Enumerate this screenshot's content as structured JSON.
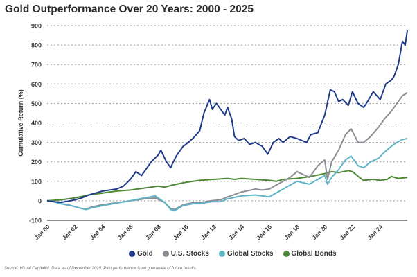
{
  "chart_data": {
    "type": "line",
    "title": "Gold Outperformance Over 20 Years: 2000 - 2025",
    "xlabel": "",
    "ylabel": "Cumulative Return (%)",
    "ylim": [
      -100,
      900
    ],
    "yticks": [
      "900",
      "800",
      "700",
      "600",
      "500",
      "400",
      "300",
      "200",
      "100",
      "0",
      "-100"
    ],
    "yticks_values": [
      900,
      800,
      700,
      600,
      500,
      400,
      300,
      200,
      100,
      0,
      -100
    ],
    "xticks": [
      "Jan 00",
      "Jan 02",
      "Jan 04",
      "Jan 06",
      "Jan 08",
      "Jan 10",
      "Jan 12",
      "Jan 14",
      "Jan 16",
      "Jan 18",
      "Jan 20",
      "Jan 22",
      "Jan 24"
    ],
    "xticks_values": [
      2000,
      2002,
      2004,
      2006,
      2008,
      2010,
      2012,
      2014,
      2016,
      2018,
      2020,
      2022,
      2024
    ],
    "xlim": [
      2000,
      2025.95
    ],
    "grid": true,
    "legend_position": "bottom",
    "series": [
      {
        "name": "Gold",
        "color": "#1f3a8a",
        "x": [
          2000,
          2000.5,
          2001,
          2001.5,
          2002,
          2002.5,
          2003,
          2003.5,
          2004,
          2004.5,
          2005,
          2005.5,
          2006,
          2006.4,
          2006.8,
          2007,
          2007.5,
          2008,
          2008.2,
          2008.6,
          2008.9,
          2009.3,
          2009.8,
          2010,
          2010.5,
          2011,
          2011.3,
          2011.7,
          2011.9,
          2012.2,
          2012.5,
          2012.8,
          2013,
          2013.3,
          2013.5,
          2013.8,
          2014.2,
          2014.6,
          2015,
          2015.5,
          2015.9,
          2016.3,
          2016.7,
          2017,
          2017.5,
          2018,
          2018.7,
          2019,
          2019.5,
          2020,
          2020.4,
          2020.7,
          2021,
          2021.3,
          2021.7,
          2022,
          2022.4,
          2022.8,
          2023,
          2023.5,
          2024,
          2024.4,
          2024.8,
          2025,
          2025.3,
          2025.6,
          2025.8,
          2025.95
        ],
        "values": [
          0,
          -5,
          -8,
          -2,
          5,
          15,
          30,
          40,
          50,
          55,
          60,
          75,
          110,
          150,
          130,
          150,
          200,
          235,
          260,
          200,
          170,
          230,
          280,
          290,
          320,
          360,
          450,
          520,
          470,
          500,
          470,
          440,
          480,
          420,
          330,
          310,
          320,
          290,
          300,
          280,
          240,
          300,
          320,
          300,
          330,
          320,
          300,
          340,
          350,
          440,
          570,
          560,
          510,
          520,
          490,
          560,
          500,
          480,
          500,
          560,
          520,
          600,
          620,
          640,
          700,
          820,
          800,
          875
        ]
      },
      {
        "name": "U.S. Stocks",
        "color": "#8a8d93",
        "x": [
          2000,
          2000.5,
          2001,
          2001.5,
          2002,
          2002.5,
          2002.8,
          2003.3,
          2004,
          2005,
          2006,
          2007,
          2007.8,
          2008.5,
          2008.9,
          2009.2,
          2009.8,
          2010.5,
          2011,
          2011.8,
          2012.5,
          2013,
          2014,
          2015,
          2015.5,
          2016,
          2016.5,
          2017,
          2017.5,
          2018,
          2018.9,
          2019.5,
          2020,
          2020.2,
          2020.5,
          2021,
          2021.5,
          2021.9,
          2022.4,
          2022.8,
          2023.3,
          2023.9,
          2024.3,
          2024.8,
          2025.2,
          2025.6,
          2025.95
        ],
        "values": [
          0,
          -5,
          -15,
          -20,
          -30,
          -40,
          -42,
          -30,
          -20,
          -10,
          0,
          10,
          15,
          -10,
          -40,
          -45,
          -20,
          -10,
          -10,
          0,
          5,
          20,
          45,
          60,
          55,
          60,
          80,
          100,
          120,
          150,
          120,
          180,
          210,
          110,
          200,
          260,
          340,
          370,
          300,
          300,
          330,
          380,
          420,
          460,
          500,
          540,
          555
        ]
      },
      {
        "name": "Global Stocks",
        "color": "#5eb5c7",
        "x": [
          2000,
          2000.5,
          2001,
          2001.5,
          2002,
          2002.5,
          2002.8,
          2003.3,
          2004,
          2005,
          2006,
          2007,
          2007.8,
          2008.5,
          2008.9,
          2009.2,
          2009.8,
          2010.5,
          2011,
          2011.8,
          2012.5,
          2013,
          2014,
          2015,
          2015.5,
          2016,
          2016.5,
          2017,
          2017.5,
          2018,
          2018.9,
          2019.5,
          2020,
          2020.2,
          2020.5,
          2021,
          2021.5,
          2021.9,
          2022.4,
          2022.8,
          2023.3,
          2023.9,
          2024.3,
          2024.8,
          2025.2,
          2025.6,
          2025.95
        ],
        "values": [
          0,
          -5,
          -15,
          -22,
          -30,
          -40,
          -45,
          -35,
          -25,
          -12,
          0,
          15,
          25,
          -10,
          -45,
          -50,
          -25,
          -15,
          -15,
          -5,
          -5,
          10,
          25,
          30,
          25,
          20,
          40,
          60,
          80,
          100,
          85,
          110,
          130,
          85,
          120,
          160,
          210,
          230,
          180,
          170,
          200,
          220,
          250,
          280,
          300,
          315,
          320
        ]
      },
      {
        "name": "Global Bonds",
        "color": "#4e8a35",
        "x": [
          2000,
          2001,
          2002,
          2003,
          2004,
          2005,
          2006,
          2007,
          2008,
          2008.5,
          2009,
          2010,
          2011,
          2012,
          2013,
          2013.5,
          2014,
          2015,
          2016,
          2016.5,
          2017,
          2018,
          2019,
          2020,
          2020.5,
          2021,
          2021.7,
          2022,
          2022.5,
          2022.8,
          2023.5,
          2024,
          2024.5,
          2024.8,
          2025.3,
          2025.95
        ],
        "values": [
          0,
          5,
          15,
          30,
          40,
          50,
          55,
          65,
          75,
          70,
          80,
          95,
          105,
          110,
          115,
          110,
          115,
          110,
          105,
          100,
          110,
          115,
          125,
          140,
          150,
          145,
          155,
          150,
          120,
          105,
          110,
          105,
          110,
          125,
          115,
          120
        ]
      }
    ]
  },
  "source": "Source: Visual Capitalist. Data as of December 2025. Past performance is no guarantee of future results."
}
